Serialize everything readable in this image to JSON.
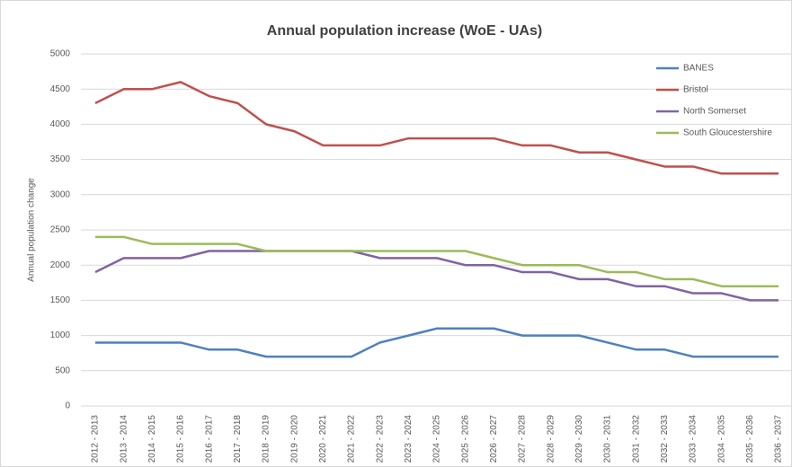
{
  "chart_data": {
    "type": "line",
    "title": "Annual population increase (WoE - UAs)",
    "y_label": "Annual population change",
    "categories": [
      "2012 - 2013",
      "2013 - 2014",
      "2014 - 2015",
      "2015 - 2016",
      "2016 - 2017",
      "2017 - 2018",
      "2018 - 2019",
      "2019 - 2020",
      "2020 - 2021",
      "2021 - 2022",
      "2022 - 2023",
      "2023 - 2024",
      "2024 - 2025",
      "2025 - 2026",
      "2026 - 2027",
      "2027 - 2028",
      "2028 - 2029",
      "2029 - 2030",
      "2030 - 2031",
      "2031 - 2032",
      "2032 - 2033",
      "2033 - 2034",
      "2034 - 2035",
      "2035 - 2036",
      "2036 - 2037"
    ],
    "series": [
      {
        "name": "BANES",
        "color": "#4f81bd",
        "values": [
          900,
          900,
          900,
          900,
          800,
          800,
          700,
          700,
          700,
          700,
          900,
          1000,
          1100,
          1100,
          1100,
          1000,
          1000,
          1000,
          900,
          800,
          800,
          700,
          700,
          700,
          700
        ]
      },
      {
        "name": "Bristol",
        "color": "#c0504d",
        "values": [
          4300,
          4500,
          4500,
          4600,
          4400,
          4300,
          4000,
          3900,
          3700,
          3700,
          3700,
          3800,
          3800,
          3800,
          3800,
          3700,
          3700,
          3600,
          3600,
          3500,
          3400,
          3400,
          3300,
          3300,
          3300
        ]
      },
      {
        "name": "North Somerset",
        "color": "#8064a2",
        "values": [
          1900,
          2100,
          2100,
          2100,
          2200,
          2200,
          2200,
          2200,
          2200,
          2200,
          2100,
          2100,
          2100,
          2000,
          2000,
          1900,
          1900,
          1800,
          1800,
          1700,
          1700,
          1600,
          1600,
          1500,
          1500
        ]
      },
      {
        "name": "South Gloucestershire",
        "color": "#9bbb59",
        "values": [
          2400,
          2400,
          2300,
          2300,
          2300,
          2300,
          2200,
          2200,
          2200,
          2200,
          2200,
          2200,
          2200,
          2200,
          2100,
          2000,
          2000,
          2000,
          1900,
          1900,
          1800,
          1800,
          1700,
          1700,
          1700
        ]
      }
    ],
    "ylim": [
      0,
      5000
    ],
    "yticks": [
      0,
      500,
      1000,
      1500,
      2000,
      2500,
      3000,
      3500,
      4000,
      4500,
      5000
    ],
    "grid": true,
    "legend": "top-right"
  }
}
